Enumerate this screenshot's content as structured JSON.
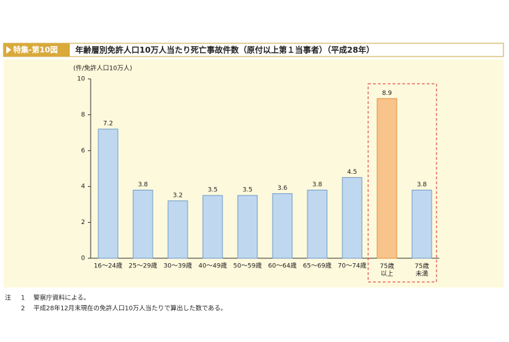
{
  "chart_data": {
    "type": "bar",
    "figure_label": "特集-第10図",
    "title": "年齢層別免許人口10万人当たり死亡事故件数（原付以上第１当事者）（平成28年）",
    "y_axis_label": "(件/免許人口10万人)",
    "categories": [
      "16～24歳",
      "25～29歳",
      "30～39歳",
      "40～49歳",
      "50～59歳",
      "60～64歳",
      "65～69歳",
      "70～74歳",
      "75歳\n以上",
      "75歳\n未満"
    ],
    "values": [
      7.2,
      3.8,
      3.2,
      3.5,
      3.5,
      3.6,
      3.8,
      4.5,
      8.9,
      3.8
    ],
    "colors": [
      "#bfd8f0",
      "#bfd8f0",
      "#bfd8f0",
      "#bfd8f0",
      "#bfd8f0",
      "#bfd8f0",
      "#bfd8f0",
      "#bfd8f0",
      "#f8c48c",
      "#bfd8f0"
    ],
    "ylim": [
      0,
      10
    ],
    "yticks": [
      0,
      2,
      4,
      6,
      8,
      10
    ]
  },
  "notes": {
    "marker": "注",
    "items": [
      {
        "number": "1",
        "text": "警察庁資料による。"
      },
      {
        "number": "2",
        "text": "平成28年12月末現在の免許人口10万人当たりで算出した数である。"
      }
    ]
  }
}
